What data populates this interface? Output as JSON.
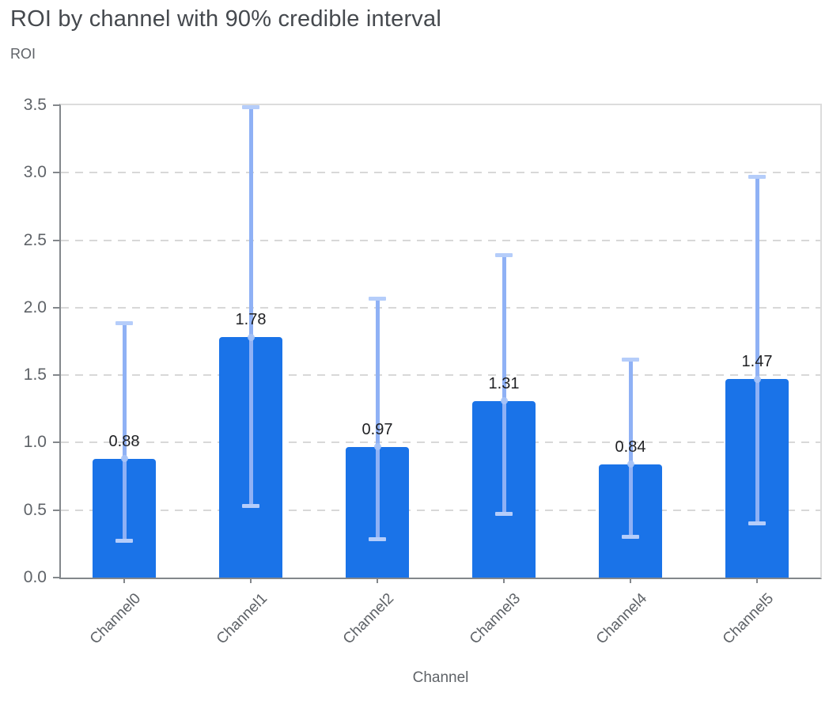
{
  "page": {
    "background": "#ffffff"
  },
  "chart_data": {
    "type": "bar",
    "title": "ROI by channel with 90% credible interval",
    "ylabel": "ROI",
    "xlabel": "Channel",
    "categories": [
      "Channel0",
      "Channel1",
      "Channel2",
      "Channel3",
      "Channel4",
      "Channel5"
    ],
    "values": [
      0.88,
      1.78,
      0.97,
      1.31,
      0.84,
      1.47
    ],
    "value_labels": [
      "0.88",
      "1.78",
      "0.97",
      "1.31",
      "0.84",
      "1.47"
    ],
    "error_low": [
      0.27,
      0.53,
      0.28,
      0.47,
      0.3,
      0.4
    ],
    "error_high": [
      1.89,
      3.49,
      2.07,
      2.39,
      1.62,
      2.97
    ],
    "error_kind": "90% credible interval",
    "ylim": [
      0,
      3.5
    ],
    "ytick_step": 0.5,
    "ytick_labels": [
      "0.0",
      "0.5",
      "1.0",
      "1.5",
      "2.0",
      "2.5",
      "3.0",
      "3.5"
    ],
    "grid": "dashed-horizontal",
    "legend": false,
    "xtick_rotation_deg": -45,
    "colors": {
      "bar": "#1a73e8",
      "error_line": "#8fb1f5",
      "error_cap": "#b5cdfa",
      "marker": "#a7c4f7",
      "grid": "#d8d8d8",
      "plot_border": "#dcdcdc",
      "axis": "#83878b",
      "tick_label": "#5f6368",
      "value_label": "#1f2023",
      "title": "#45494e"
    }
  }
}
